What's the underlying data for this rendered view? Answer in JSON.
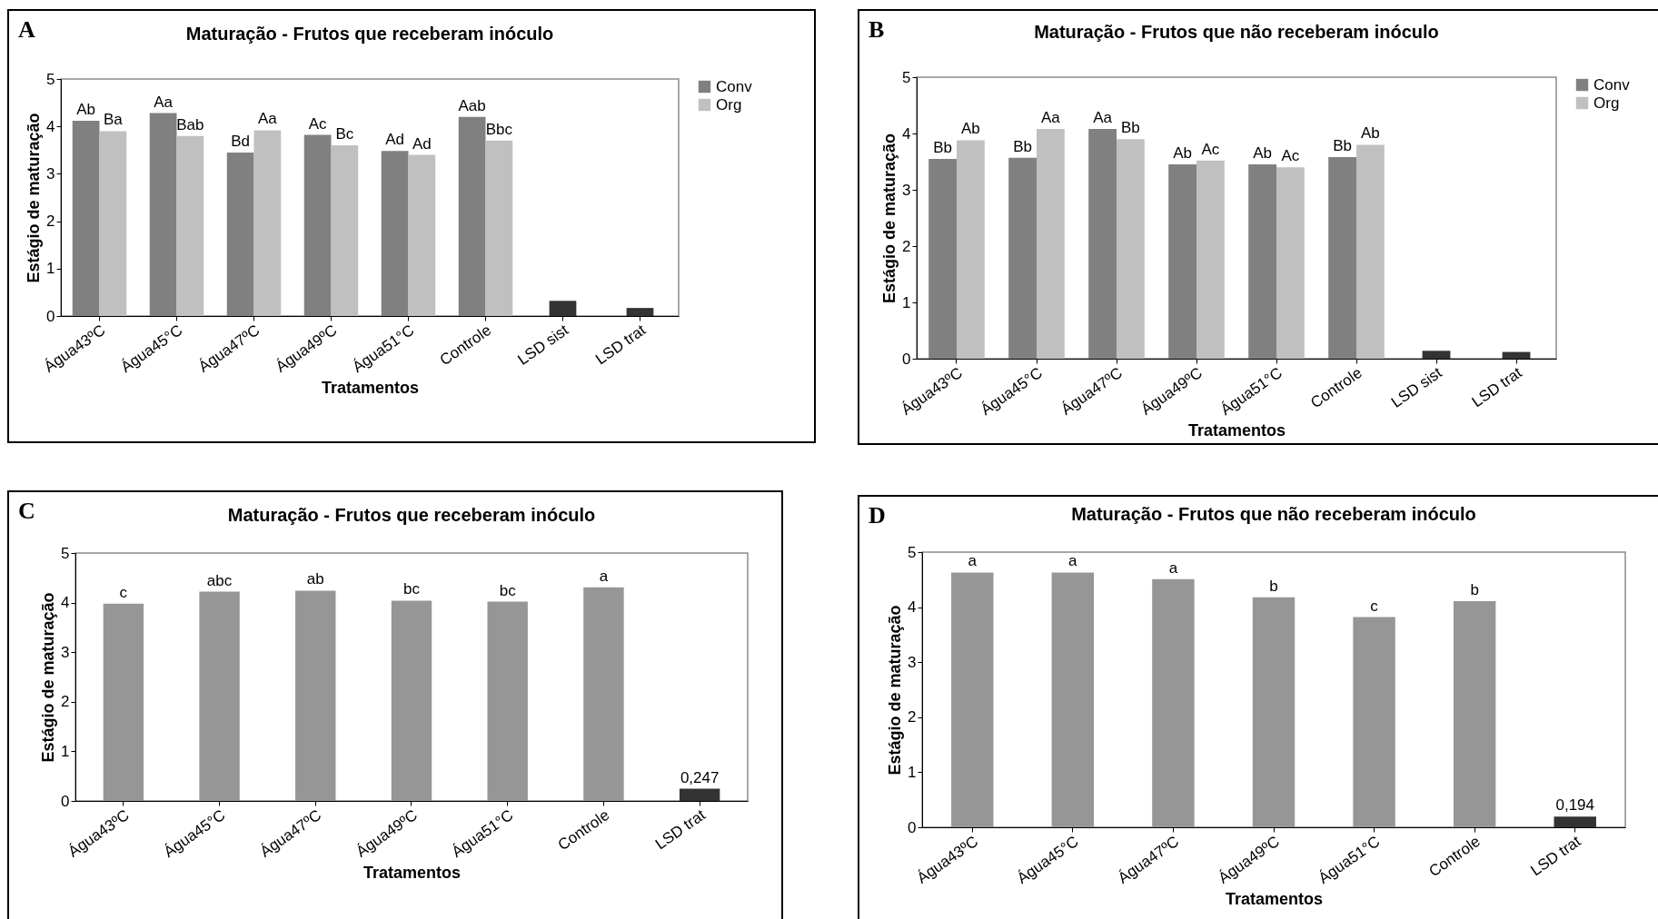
{
  "chart_data": [
    {
      "type": "bar",
      "title": "Maturação - Frutos que receberam inóculo",
      "xlabel": "Tratamentos",
      "ylabel": "Estágio de maturação",
      "annotations": [
        "A"
      ],
      "categories": [
        "Água43ºC",
        "Água45°C",
        "Água47ºC",
        "Água49ºC",
        "Água51°C",
        "Controle",
        "LSD sist",
        "LSD trat"
      ],
      "ylim": [
        0,
        5
      ],
      "yticks": [
        0,
        1,
        2,
        3,
        4,
        5
      ],
      "legend": "right",
      "series": [
        {
          "name": "Conv",
          "color": "#808080",
          "values": [
            4.12,
            4.28,
            3.45,
            3.82,
            3.48,
            4.2,
            null,
            null
          ],
          "value_labels": [
            "Ab",
            "Aa",
            "Bd",
            "Ac",
            "Ad",
            "Aab",
            null,
            null
          ]
        },
        {
          "name": "Org",
          "color": "#c0c0c0",
          "values": [
            3.9,
            3.8,
            3.92,
            3.6,
            3.4,
            3.7,
            null,
            null
          ],
          "value_labels": [
            "Ba",
            "Bab",
            "Aa",
            "Bc",
            "Ad",
            "Bbc",
            null,
            null
          ]
        },
        {
          "color": "#333333",
          "values": [
            null,
            null,
            null,
            null,
            null,
            null,
            0.32,
            0.17
          ]
        }
      ]
    },
    {
      "type": "bar",
      "title": "Maturação - Frutos que não receberam inóculo",
      "xlabel": "Tratamentos",
      "ylabel": "Estágio de maturação",
      "annotations": [
        "B"
      ],
      "categories": [
        "Água43ºC",
        "Água45°C",
        "Água47ºC",
        "Água49ºC",
        "Água51°C",
        "Controle",
        "LSD sist",
        "LSD trat"
      ],
      "ylim": [
        0,
        5
      ],
      "yticks": [
        0,
        1,
        2,
        3,
        4,
        5
      ],
      "legend": "right",
      "series": [
        {
          "name": "Conv",
          "color": "#808080",
          "values": [
            3.55,
            3.57,
            4.08,
            3.45,
            3.45,
            3.58,
            null,
            null
          ],
          "value_labels": [
            "Bb",
            "Bb",
            "Aa",
            "Ab",
            "Ab",
            "Bb",
            null,
            null
          ]
        },
        {
          "name": "Org",
          "color": "#c0c0c0",
          "values": [
            3.88,
            4.08,
            3.9,
            3.52,
            3.4,
            3.8,
            null,
            null
          ],
          "value_labels": [
            "Ab",
            "Aa",
            "Bb",
            "Ac",
            "Ac",
            "Ab",
            null,
            null
          ]
        },
        {
          "color": "#333333",
          "values": [
            null,
            null,
            null,
            null,
            null,
            null,
            0.14,
            0.12
          ]
        }
      ]
    },
    {
      "type": "bar",
      "title": "Maturação - Frutos que receberam inóculo",
      "xlabel": "Tratamentos",
      "ylabel": "Estágio de maturação",
      "annotations": [
        "C"
      ],
      "categories": [
        "Água43ºC",
        "Água45°C",
        "Água47ºC",
        "Água49ºC",
        "Água51°C",
        "Controle",
        "LSD trat"
      ],
      "ylim": [
        0,
        5
      ],
      "yticks": [
        0,
        1,
        2,
        3,
        4,
        5
      ],
      "values": [
        3.98,
        4.22,
        4.24,
        4.04,
        4.02,
        4.31,
        0.247
      ],
      "colors": [
        "#969696",
        "#969696",
        "#969696",
        "#969696",
        "#969696",
        "#969696",
        "#333333"
      ],
      "value_labels": [
        "c",
        "abc",
        "ab",
        "bc",
        "bc",
        "a",
        "0,247"
      ]
    },
    {
      "type": "bar",
      "title": "Maturação - Frutos que não receberam inóculo",
      "xlabel": "Tratamentos",
      "ylabel": "Estágio de maturação",
      "annotations": [
        "D"
      ],
      "categories": [
        "Água43ºC",
        "Água45°C",
        "Água47ºC",
        "Água49ºC",
        "Água51°C",
        "Controle",
        "LSD trat"
      ],
      "ylim": [
        0,
        5
      ],
      "yticks": [
        0,
        1,
        2,
        3,
        4,
        5
      ],
      "values": [
        4.63,
        4.63,
        4.51,
        4.18,
        3.82,
        4.11,
        0.194
      ],
      "colors": [
        "#969696",
        "#969696",
        "#969696",
        "#969696",
        "#969696",
        "#969696",
        "#333333"
      ],
      "value_labels": [
        "a",
        "a",
        "a",
        "b",
        "c",
        "b",
        "0,194"
      ]
    }
  ]
}
